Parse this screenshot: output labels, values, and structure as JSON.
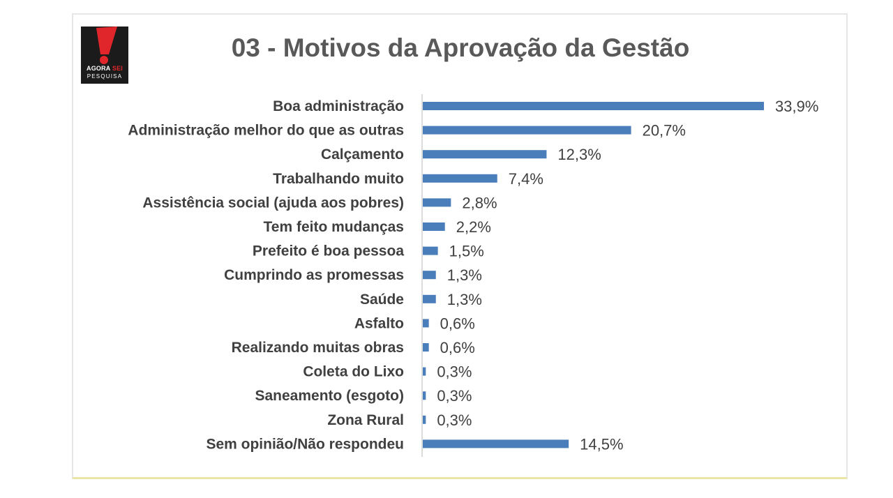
{
  "logo": {
    "line1_a": "AGORA",
    "line1_b": "SEI",
    "line2": "PESQUISA",
    "colors": {
      "background": "#1b1b1b",
      "accent": "#e0262b"
    }
  },
  "chart_data": {
    "type": "bar",
    "orientation": "horizontal",
    "title": "03 - Motivos da Aprovação da Gestão",
    "categories": [
      "Boa administração",
      "Administração melhor do que as outras",
      "Calçamento",
      "Trabalhando muito",
      "Assistência social (ajuda aos pobres)",
      "Tem feito mudanças",
      "Prefeito é boa pessoa",
      "Cumprindo as promessas",
      "Saúde",
      "Asfalto",
      "Realizando muitas obras",
      "Coleta do Lixo",
      "Saneamento (esgoto)",
      "Zona Rural",
      "Sem opinião/Não respondeu"
    ],
    "values": [
      33.9,
      20.7,
      12.3,
      7.4,
      2.8,
      2.2,
      1.5,
      1.3,
      1.3,
      0.6,
      0.6,
      0.3,
      0.3,
      0.3,
      14.5
    ],
    "data_labels": [
      "33,9%",
      "20,7%",
      "12,3%",
      "7,4%",
      "2,8%",
      "2,2%",
      "1,5%",
      "1,3%",
      "1,3%",
      "0,6%",
      "0,6%",
      "0,3%",
      "0,3%",
      "0,3%",
      "14,5%"
    ],
    "xlim": [
      0,
      35
    ],
    "grid": false,
    "legend": "none",
    "bar_color": "#4a7ebb"
  }
}
